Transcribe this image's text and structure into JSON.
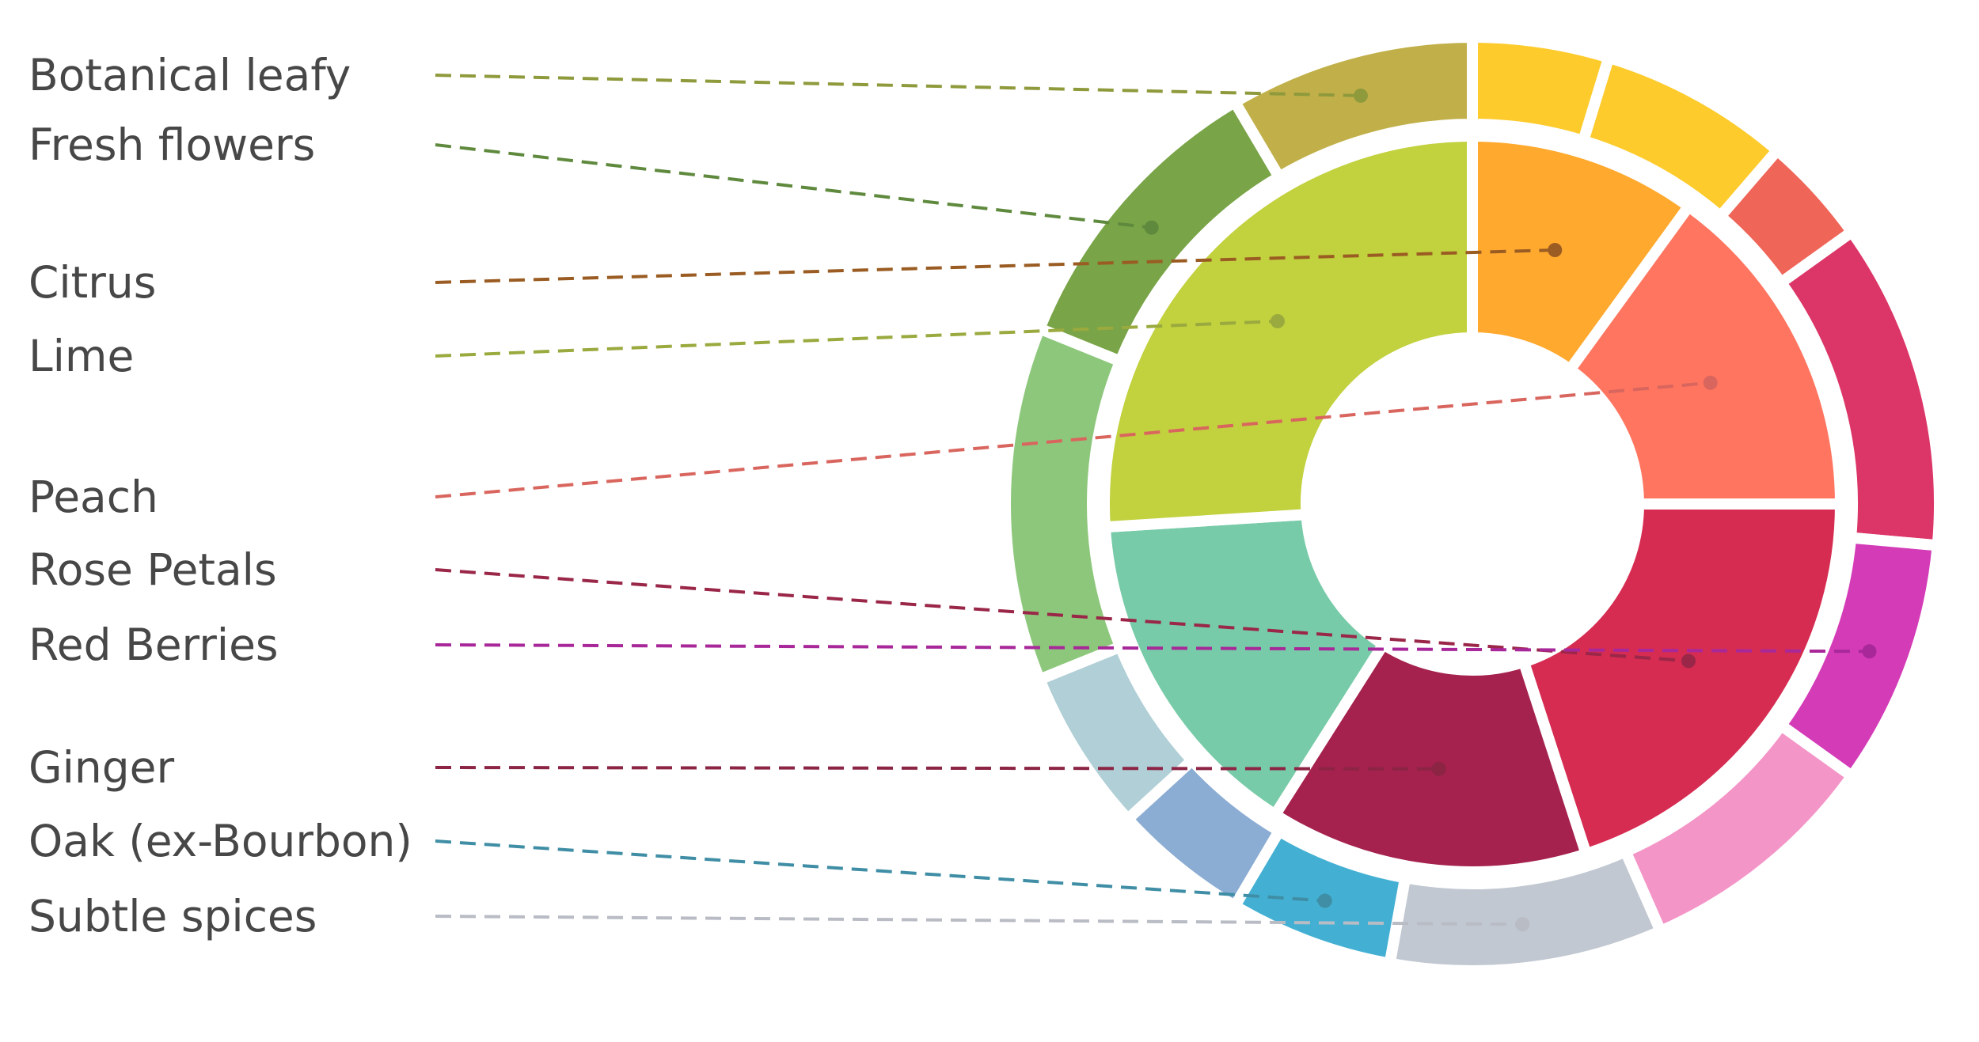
{
  "chart_data": {
    "type": "pie",
    "variant": "sunburst",
    "title": "",
    "legend": {
      "placement": "left",
      "items": [
        {
          "label": "Botanical leafy",
          "color": "#8f9a3c"
        },
        {
          "label": "Fresh flowers",
          "color": "#5f8a3e"
        },
        {
          "label": "Citrus",
          "color": "#9a5c22"
        },
        {
          "label": "Lime",
          "color": "#9aaa3e"
        },
        {
          "label": "Peach",
          "color": "#d9665e"
        },
        {
          "label": "Rose Petals",
          "color": "#9a2648"
        },
        {
          "label": "Red Berries",
          "color": "#a8289a"
        },
        {
          "label": "Ginger",
          "color": "#8c2444"
        },
        {
          "label": "Oak (ex-Bourbon)",
          "color": "#3f8ea5"
        },
        {
          "label": "Subtle spices",
          "color": "#b9bcc4"
        }
      ]
    },
    "inner_ring": [
      {
        "color": "#ffa92e",
        "value": 10
      },
      {
        "color": "#ff7560",
        "value": 15
      },
      {
        "color": "#d62c52",
        "value": 20
      },
      {
        "color": "#a5214e",
        "value": 14
      },
      {
        "color": "#78cba8",
        "value": 15
      },
      {
        "color": "#c2d13e",
        "value": 26
      }
    ],
    "outer_ring": [
      {
        "color": "#fdcb2c",
        "value": 5
      },
      {
        "color": "#fdcb2c",
        "value": 7
      },
      {
        "color": "#ef6558",
        "value": 4
      },
      {
        "color": "#dc3567",
        "value": 12
      },
      {
        "color": "#d43bb7",
        "value": 9
      },
      {
        "color": "#f495c7",
        "value": 9
      },
      {
        "color": "#c1c8d1",
        "value": 10
      },
      {
        "color": "#43b0d3",
        "value": 6
      },
      {
        "color": "#8bacd3",
        "value": 5
      },
      {
        "color": "#b0cfd6",
        "value": 6
      },
      {
        "color": "#8dc77b",
        "value": 13
      },
      {
        "color": "#79a447",
        "value": 11
      },
      {
        "color": "#c1b049",
        "value": 9
      }
    ],
    "leader_lines": [
      {
        "legend": 0,
        "ring": "outer",
        "segment": 12
      },
      {
        "legend": 1,
        "ring": "outer",
        "segment": 11
      },
      {
        "legend": 2,
        "ring": "inner",
        "segment": 0
      },
      {
        "legend": 3,
        "ring": "inner",
        "segment": 5
      },
      {
        "legend": 4,
        "ring": "inner",
        "segment": 1
      },
      {
        "legend": 5,
        "ring": "inner",
        "segment": 2
      },
      {
        "legend": 6,
        "ring": "outer",
        "segment": 4
      },
      {
        "legend": 7,
        "ring": "inner",
        "segment": 3
      },
      {
        "legend": 8,
        "ring": "outer",
        "segment": 7
      },
      {
        "legend": 9,
        "ring": "outer",
        "segment": 6
      }
    ]
  }
}
